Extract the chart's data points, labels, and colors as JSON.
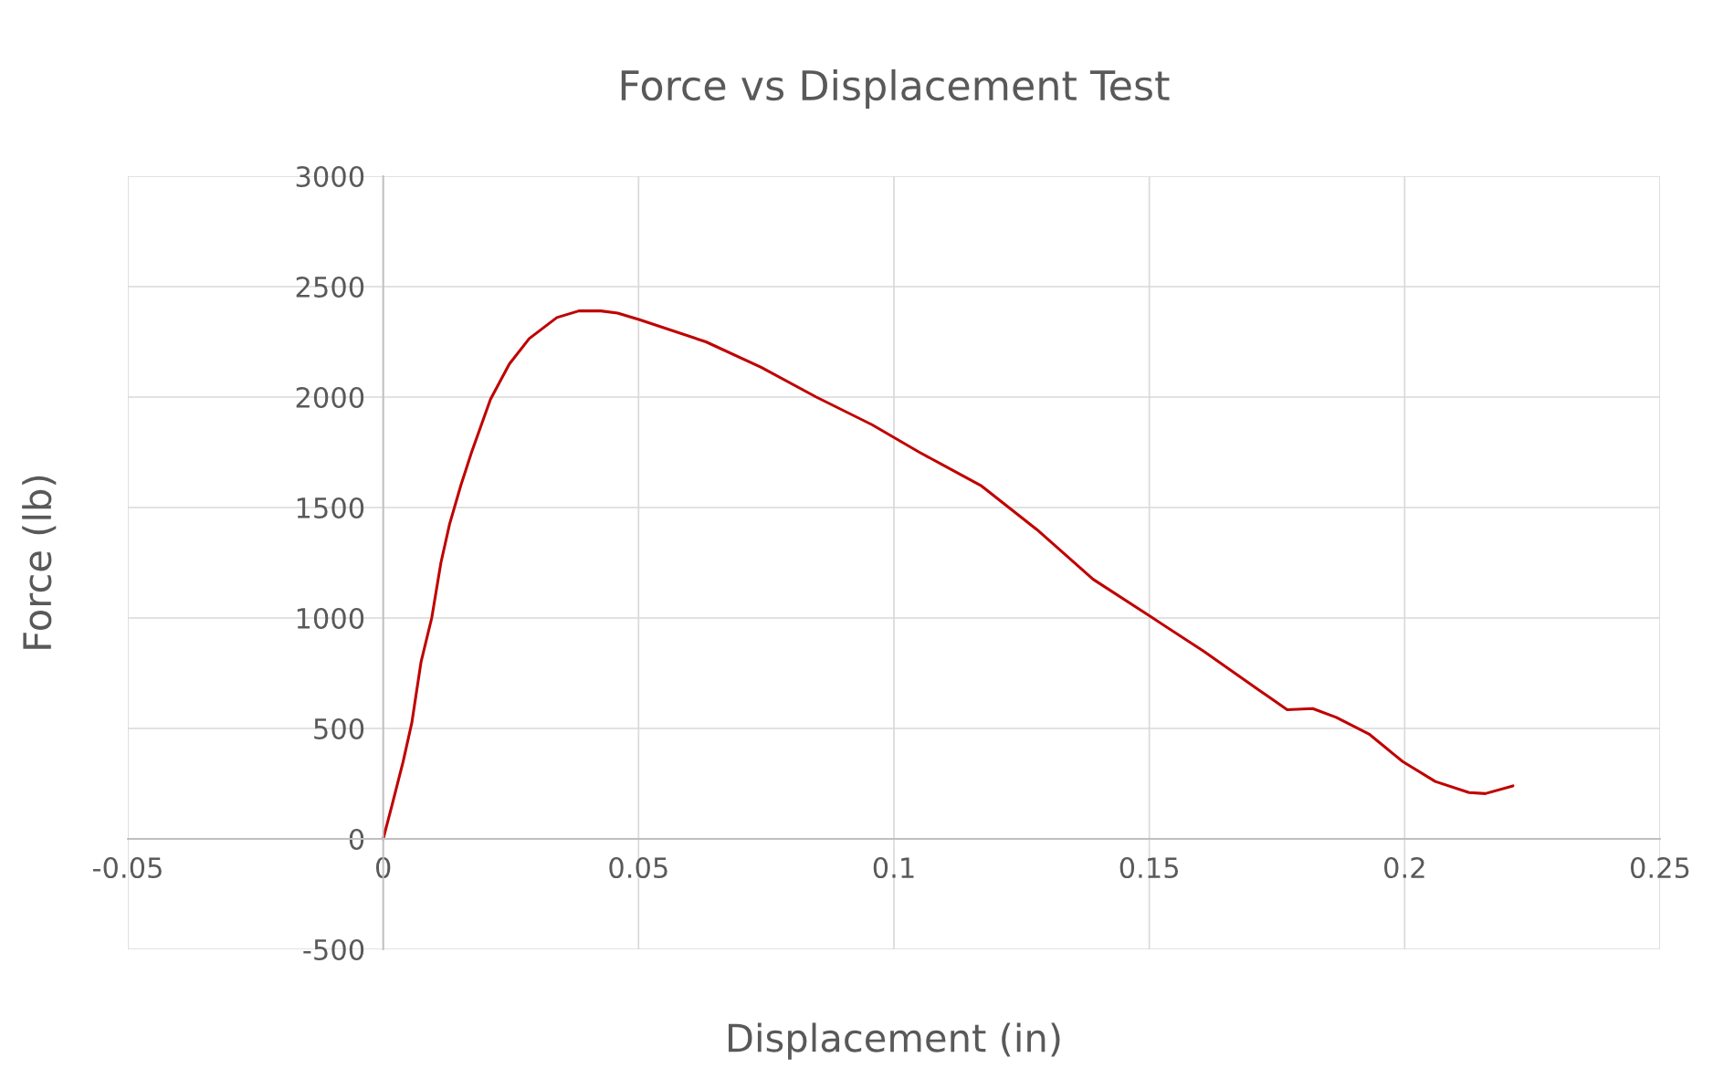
{
  "chart_data": {
    "type": "line",
    "title": "Force vs Displacement Test",
    "xlabel": "Displacement (in)",
    "ylabel": "Force (lb)",
    "xlim": [
      -0.05,
      0.25
    ],
    "xticks": [
      -0.05,
      0,
      0.05,
      0.1,
      0.15,
      0.2,
      0.25
    ],
    "ylim": [
      -500,
      3000
    ],
    "yticks": [
      -500,
      0,
      500,
      1000,
      1500,
      2000,
      2500,
      3000
    ],
    "grid": true,
    "marker": "none",
    "line_style": "solid",
    "series": [
      {
        "color": "#c00000",
        "x": [
          0,
          0.0017,
          0.0039,
          0.0056,
          0.0074,
          0.0095,
          0.0113,
          0.013,
          0.0152,
          0.0173,
          0.021,
          0.0247,
          0.0286,
          0.034,
          0.0383,
          0.0426,
          0.0459,
          0.0502,
          0.0632,
          0.074,
          0.0848,
          0.0957,
          0.105,
          0.117,
          0.128,
          0.139,
          0.15,
          0.1606,
          0.1714,
          0.177,
          0.182,
          0.1866,
          0.193,
          0.1996,
          0.206,
          0.2126,
          0.2158,
          0.2212
        ],
        "values": [
          0,
          150,
          350,
          525,
          800,
          1000,
          1250,
          1425,
          1600,
          1750,
          1990,
          2150,
          2265,
          2360,
          2390,
          2390,
          2380,
          2350,
          2250,
          2135,
          2000,
          1875,
          1750,
          1600,
          1400,
          1175,
          1010,
          850,
          675,
          585,
          590,
          550,
          475,
          350,
          260,
          210,
          205,
          240
        ]
      }
    ]
  }
}
